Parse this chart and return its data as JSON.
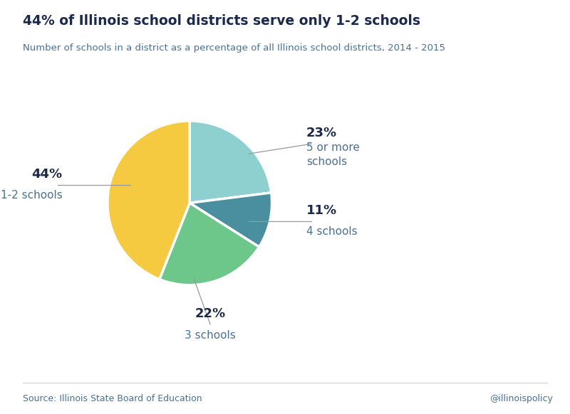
{
  "title": "44% of Illinois school districts serve only 1-2 schools",
  "subtitle": "Number of schools in a district as a percentage of all Illinois school districts, 2014 - 2015",
  "slices_ccw": [
    44,
    22,
    11,
    23
  ],
  "colors_ccw": [
    "#F5C940",
    "#6DC68A",
    "#4A8FA0",
    "#8ECFCF"
  ],
  "title_color": "#1B2A4A",
  "subtitle_color": "#4A7090",
  "label_pct_color": "#1B2A4A",
  "label_text_color": "#4A7090",
  "source_text": "Source: Illinois State Board of Education",
  "handle_text": "@illinoispolicy",
  "background_color": "#FFFFFF"
}
